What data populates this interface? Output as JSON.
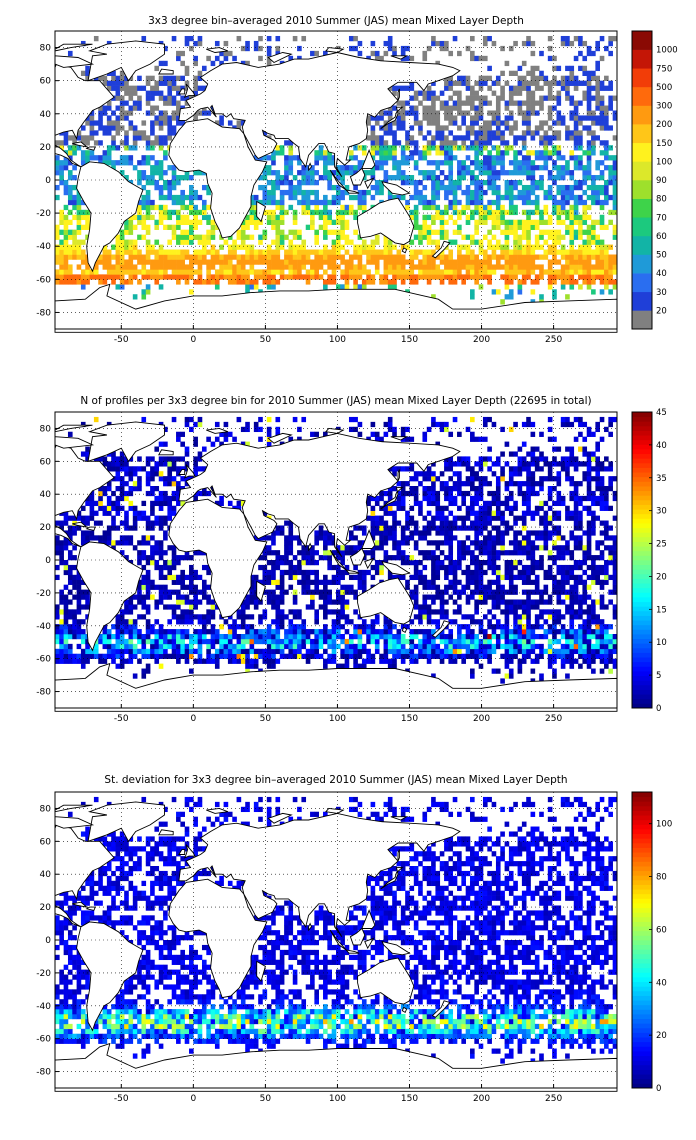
{
  "chart_data": [
    {
      "type": "heatmap",
      "title": "3x3 degree bin–averaged 2010 Summer (JAS) mean Mixed Layer Depth",
      "xlabel": "",
      "ylabel": "",
      "xlim": [
        -96,
        294
      ],
      "ylim": [
        -90,
        90
      ],
      "x_ticks": [
        "-50",
        "0",
        "50",
        "100",
        "150",
        "200",
        "250"
      ],
      "y_ticks": [
        "80",
        "60",
        "40",
        "20",
        "0",
        "-20",
        "-40",
        "-60",
        "-80"
      ],
      "grid": true,
      "colorbar": {
        "scale": "categorical",
        "labels": [
          "20",
          "30",
          "40",
          "50",
          "60",
          "70",
          "80",
          "90",
          "100",
          "150",
          "200",
          "300",
          "500",
          "750",
          "1000"
        ],
        "colors": [
          "#808080",
          "#1f3fd8",
          "#2a6ef0",
          "#1f9ad8",
          "#12b4a6",
          "#1cc97e",
          "#3ed34a",
          "#9ee02c",
          "#dce82a",
          "#fff21e",
          "#ffc618",
          "#ff9a10",
          "#ff6a0c",
          "#f23d08",
          "#c41606",
          "#8a0a04"
        ]
      },
      "field": "mld"
    },
    {
      "type": "heatmap",
      "title": "N of profiles per 3x3 degree bin for 2010 Summer (JAS) mean Mixed Layer Depth  (22695 in total)",
      "xlabel": "",
      "ylabel": "",
      "xlim": [
        -96,
        294
      ],
      "ylim": [
        -90,
        90
      ],
      "x_ticks": [
        "-50",
        "0",
        "50",
        "100",
        "150",
        "200",
        "250"
      ],
      "y_ticks": [
        "80",
        "60",
        "40",
        "20",
        "0",
        "-20",
        "-40",
        "-60",
        "-80"
      ],
      "grid": true,
      "colorbar": {
        "scale": "linear",
        "range": [
          0,
          45
        ],
        "labels": [
          "0",
          "5",
          "10",
          "15",
          "20",
          "25",
          "30",
          "35",
          "40",
          "45"
        ]
      },
      "field": "count"
    },
    {
      "type": "heatmap",
      "title": "St. deviation for 3x3 degree bin–averaged 2010 Summer (JAS) mean Mixed Layer Depth",
      "xlabel": "",
      "ylabel": "",
      "xlim": [
        -96,
        294
      ],
      "ylim": [
        -90,
        90
      ],
      "x_ticks": [
        "-50",
        "0",
        "50",
        "100",
        "150",
        "200",
        "250"
      ],
      "y_ticks": [
        "80",
        "60",
        "40",
        "20",
        "0",
        "-20",
        "-40",
        "-60",
        "-80"
      ],
      "grid": true,
      "colorbar": {
        "scale": "linear",
        "range": [
          0,
          112
        ],
        "labels": [
          "0",
          "20",
          "40",
          "60",
          "80",
          "100"
        ]
      },
      "field": "std"
    }
  ]
}
